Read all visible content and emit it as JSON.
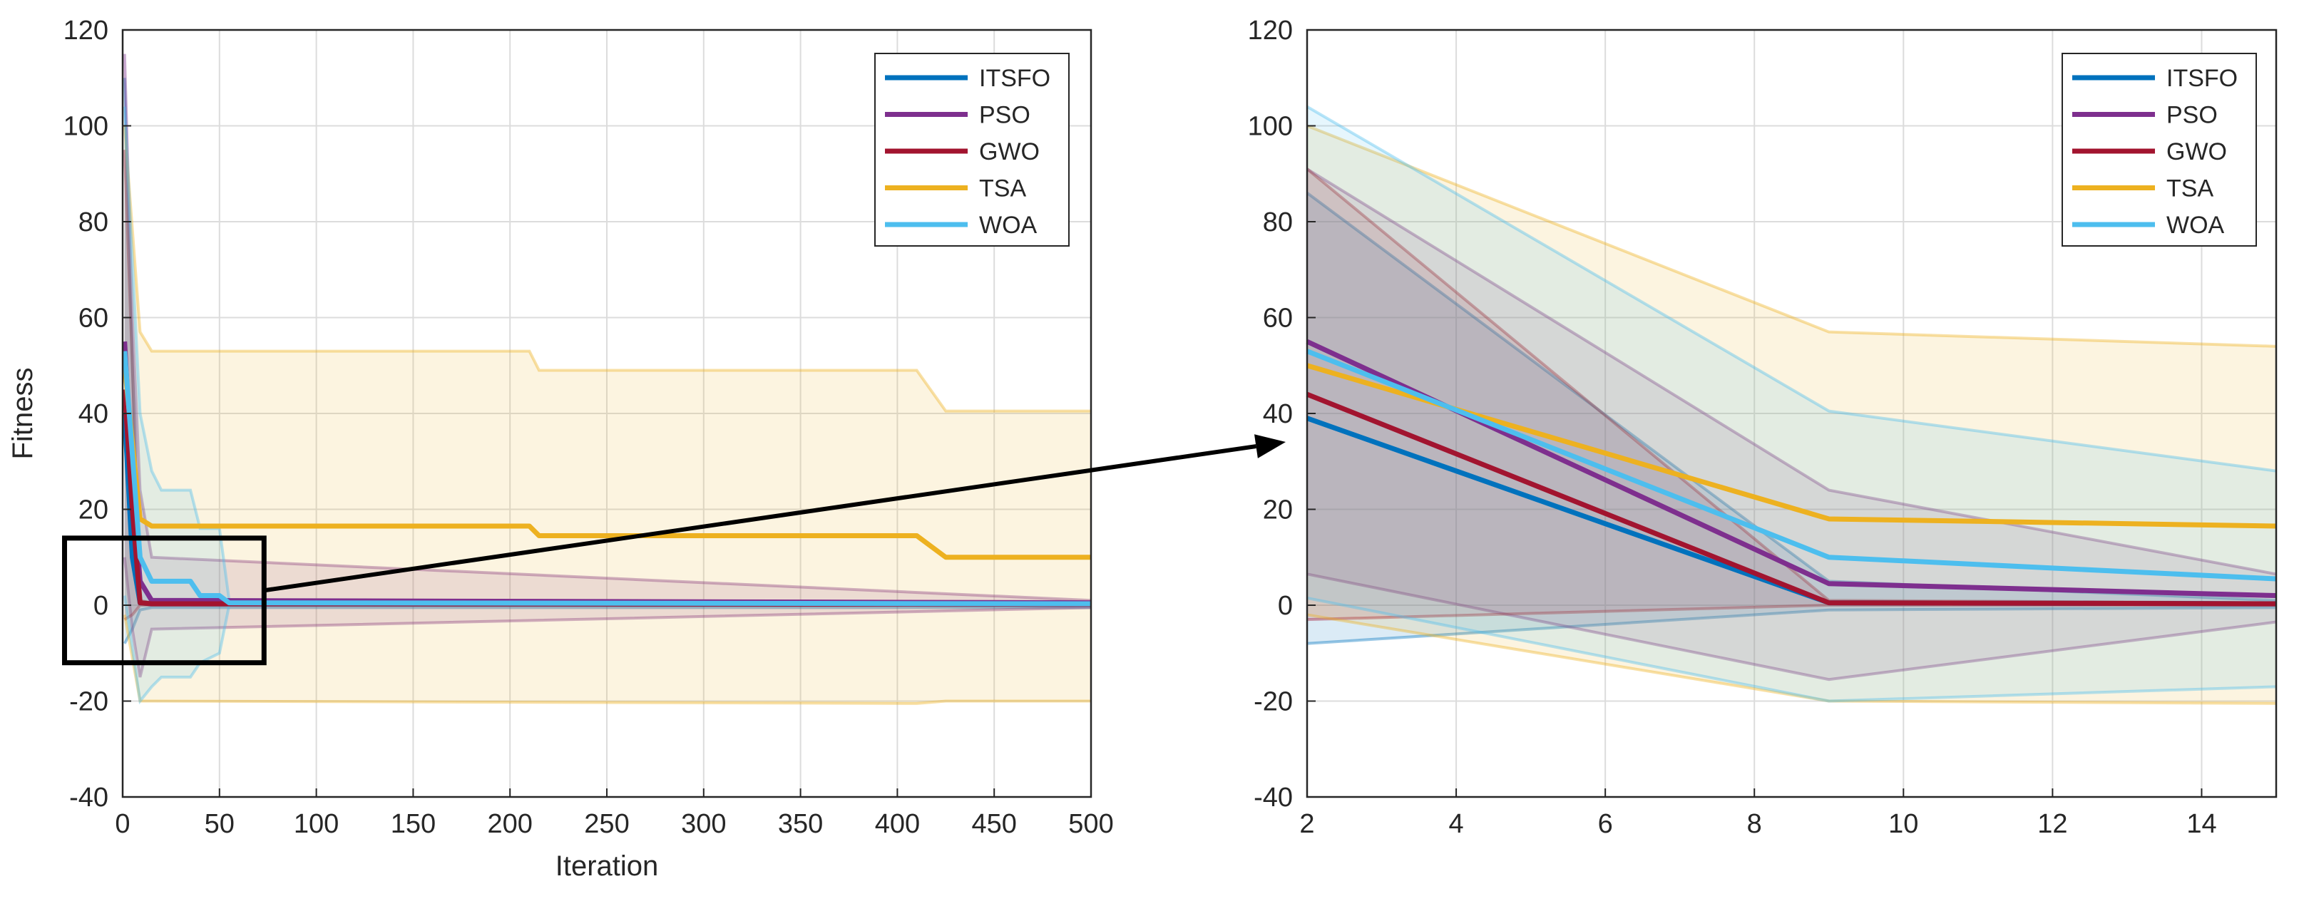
{
  "chart_data": [
    {
      "id": "left",
      "type": "line",
      "title": "",
      "xlabel": "Iteration",
      "ylabel": "Fitness",
      "xlim": [
        0,
        500
      ],
      "ylim": [
        -40,
        120
      ],
      "xticks": [
        0,
        50,
        100,
        150,
        200,
        250,
        300,
        350,
        400,
        450,
        500
      ],
      "yticks": [
        -40,
        -20,
        0,
        20,
        40,
        60,
        80,
        100,
        120
      ],
      "grid": true,
      "legend_position": "top-right",
      "series": [
        {
          "name": "ITSFO",
          "color": "#0072BD",
          "mean": [
            [
              1,
              40
            ],
            [
              5,
              10
            ],
            [
              9,
              0.5
            ],
            [
              15,
              0.3
            ],
            [
              500,
              0.2
            ]
          ],
          "upper": [
            [
              1,
              110
            ],
            [
              5,
              50
            ],
            [
              9,
              5
            ],
            [
              15,
              1
            ],
            [
              500,
              0.5
            ]
          ],
          "lower": [
            [
              1,
              -8
            ],
            [
              5,
              -5
            ],
            [
              9,
              -1
            ],
            [
              15,
              -0.5
            ],
            [
              500,
              -0.5
            ]
          ]
        },
        {
          "name": "PSO",
          "color": "#7E2F8E",
          "mean": [
            [
              1,
              55
            ],
            [
              5,
              25
            ],
            [
              9,
              5
            ],
            [
              15,
              1
            ],
            [
              500,
              0.5
            ]
          ],
          "upper": [
            [
              1,
              115
            ],
            [
              5,
              60
            ],
            [
              9,
              24
            ],
            [
              15,
              10
            ],
            [
              500,
              1
            ]
          ],
          "lower": [
            [
              1,
              10
            ],
            [
              5,
              -5
            ],
            [
              9,
              -15
            ],
            [
              15,
              -5
            ],
            [
              500,
              -0.5
            ]
          ]
        },
        {
          "name": "GWO",
          "color": "#A2142F",
          "mean": [
            [
              1,
              45
            ],
            [
              5,
              20
            ],
            [
              9,
              0.5
            ],
            [
              15,
              0.3
            ],
            [
              500,
              0.2
            ]
          ],
          "upper": [
            [
              1,
              95
            ],
            [
              5,
              50
            ],
            [
              9,
              1
            ],
            [
              15,
              0.5
            ],
            [
              500,
              0.3
            ]
          ],
          "lower": [
            [
              1,
              -3
            ],
            [
              5,
              -2
            ],
            [
              9,
              0
            ],
            [
              15,
              0
            ],
            [
              500,
              0
            ]
          ]
        },
        {
          "name": "TSA",
          "color": "#EDB120",
          "mean": [
            [
              1,
              50
            ],
            [
              9,
              18
            ],
            [
              15,
              16.5
            ],
            [
              210,
              16.5
            ],
            [
              215,
              14.5
            ],
            [
              410,
              14.5
            ],
            [
              425,
              10
            ],
            [
              500,
              10
            ]
          ],
          "upper": [
            [
              1,
              100
            ],
            [
              9,
              57
            ],
            [
              15,
              53
            ],
            [
              210,
              53
            ],
            [
              215,
              49
            ],
            [
              410,
              49
            ],
            [
              425,
              40.5
            ],
            [
              500,
              40.5
            ]
          ],
          "lower": [
            [
              1,
              -2
            ],
            [
              9,
              -20
            ],
            [
              15,
              -20
            ],
            [
              410,
              -20.5
            ],
            [
              425,
              -20
            ],
            [
              500,
              -20
            ]
          ]
        },
        {
          "name": "WOA",
          "color": "#4DBEEE",
          "mean": [
            [
              1,
              53
            ],
            [
              9,
              10
            ],
            [
              15,
              5
            ],
            [
              35,
              5
            ],
            [
              40,
              2
            ],
            [
              50,
              2
            ],
            [
              55,
              0.5
            ],
            [
              500,
              0.3
            ]
          ],
          "upper": [
            [
              1,
              104
            ],
            [
              9,
              40
            ],
            [
              15,
              28
            ],
            [
              20,
              24
            ],
            [
              35,
              24
            ],
            [
              40,
              16
            ],
            [
              50,
              16
            ],
            [
              55,
              1
            ],
            [
              500,
              0.5
            ]
          ],
          "lower": [
            [
              1,
              2
            ],
            [
              9,
              -20
            ],
            [
              15,
              -17
            ],
            [
              20,
              -15
            ],
            [
              35,
              -15
            ],
            [
              40,
              -12
            ],
            [
              50,
              -10
            ],
            [
              55,
              0
            ],
            [
              500,
              0
            ]
          ]
        }
      ]
    },
    {
      "id": "right",
      "type": "line",
      "title": "",
      "xlabel": "",
      "ylabel": "",
      "xlim": [
        2,
        15
      ],
      "ylim": [
        -40,
        120
      ],
      "xticks": [
        2,
        4,
        6,
        8,
        10,
        12,
        14
      ],
      "yticks": [
        -40,
        -20,
        0,
        20,
        40,
        60,
        80,
        100,
        120
      ],
      "grid": true,
      "legend_position": "top-right",
      "series": [
        {
          "name": "ITSFO",
          "color": "#0072BD",
          "mean": [
            [
              2,
              39
            ],
            [
              9,
              0.5
            ],
            [
              15,
              0.3
            ]
          ],
          "upper": [
            [
              2,
              86
            ],
            [
              9,
              5
            ],
            [
              15,
              1
            ]
          ],
          "lower": [
            [
              2,
              -8
            ],
            [
              9,
              -1
            ],
            [
              15,
              -0.5
            ]
          ]
        },
        {
          "name": "PSO",
          "color": "#7E2F8E",
          "mean": [
            [
              2,
              55
            ],
            [
              9,
              4.5
            ],
            [
              15,
              2
            ]
          ],
          "upper": [
            [
              2,
              91
            ],
            [
              9,
              24
            ],
            [
              15,
              6.5
            ]
          ],
          "lower": [
            [
              2,
              6.5
            ],
            [
              9,
              -15.5
            ],
            [
              15,
              -3.5
            ]
          ]
        },
        {
          "name": "GWO",
          "color": "#A2142F",
          "mean": [
            [
              2,
              44
            ],
            [
              9,
              0.5
            ],
            [
              15,
              0.3
            ]
          ],
          "upper": [
            [
              2,
              91
            ],
            [
              9,
              1
            ],
            [
              15,
              0.5
            ]
          ],
          "lower": [
            [
              2,
              -3
            ],
            [
              9,
              0
            ],
            [
              15,
              0
            ]
          ]
        },
        {
          "name": "TSA",
          "color": "#EDB120",
          "mean": [
            [
              2,
              50
            ],
            [
              9,
              18
            ],
            [
              15,
              16.5
            ]
          ],
          "upper": [
            [
              2,
              100
            ],
            [
              9,
              57
            ],
            [
              15,
              54
            ]
          ],
          "lower": [
            [
              2,
              -2
            ],
            [
              9,
              -20
            ],
            [
              15,
              -20.5
            ]
          ]
        },
        {
          "name": "WOA",
          "color": "#4DBEEE",
          "mean": [
            [
              2,
              53
            ],
            [
              9,
              10
            ],
            [
              15,
              5.5
            ]
          ],
          "upper": [
            [
              2,
              104
            ],
            [
              9,
              40.5
            ],
            [
              15,
              28
            ]
          ],
          "lower": [
            [
              2,
              1.5
            ],
            [
              9,
              -20
            ],
            [
              15,
              -17
            ]
          ]
        }
      ]
    }
  ],
  "zoom_annotation": {
    "source_panel": "left",
    "x_range": [
      -30,
      73
    ],
    "y_range": [
      -12,
      14
    ],
    "target_panel": "right",
    "arrow_color": "#000000"
  }
}
